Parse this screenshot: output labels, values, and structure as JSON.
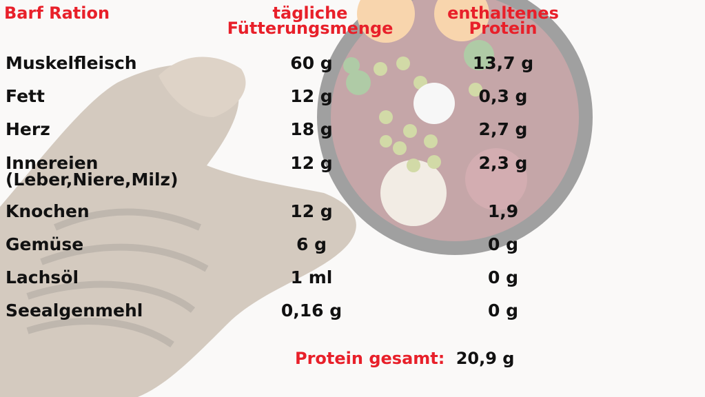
{
  "headers": {
    "ration": "Barf Ration",
    "menge_line1": "tägliche",
    "menge_line2": "Fütterungsmenge",
    "protein_line1": "enthaltenes",
    "protein_line2": "Protein"
  },
  "rows": [
    {
      "name": "Muskelfleisch",
      "name2": "",
      "amount": "60 g",
      "protein": "13,7 g"
    },
    {
      "name": "Fett",
      "name2": "",
      "amount": "12 g",
      "protein": "0,3 g"
    },
    {
      "name": "Herz",
      "name2": "",
      "amount": "18 g",
      "protein": "2,7 g"
    },
    {
      "name": "Innereien",
      "name2": "(Leber,Niere,Milz)",
      "amount": "12 g",
      "protein": "2,3 g"
    },
    {
      "name": "Knochen",
      "name2": "",
      "amount": "12 g",
      "protein": "1,9"
    },
    {
      "name": "Gemüse",
      "name2": "",
      "amount": "6 g",
      "protein": "0 g"
    },
    {
      "name": "Lachsöl",
      "name2": "",
      "amount": "1 ml",
      "protein": "0 g"
    },
    {
      "name": "Seealgenmehl",
      "name2": "",
      "amount": "0,16 g",
      "protein": "0 g"
    }
  ],
  "total": {
    "label": "Protein gesamt:",
    "value": "20,9 g"
  },
  "colors": {
    "accent": "#e8202a",
    "text": "#111111"
  }
}
